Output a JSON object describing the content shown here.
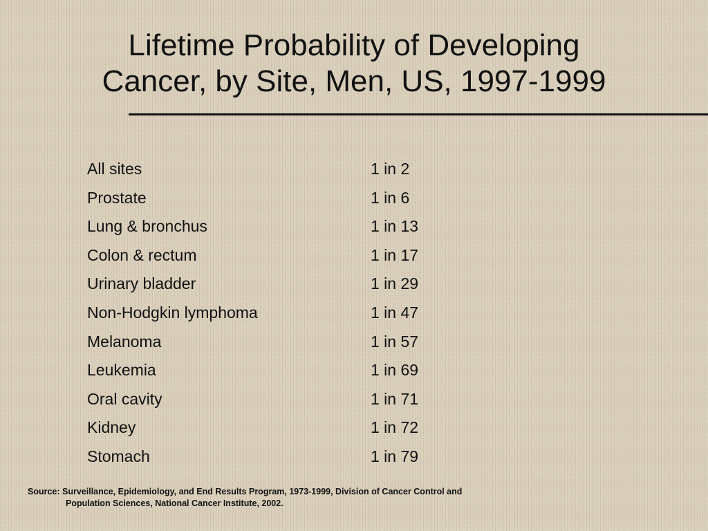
{
  "slide": {
    "title_line1": "Lifetime Probability of Developing",
    "title_line2": "Cancer, by Site, Men, US, 1997-1999",
    "rows": [
      {
        "site": "All sites",
        "probability": "1 in 2"
      },
      {
        "site": "Prostate",
        "probability": "1 in 6"
      },
      {
        "site": "Lung & bronchus",
        "probability": "1 in 13"
      },
      {
        "site": "Colon & rectum",
        "probability": "1 in 17"
      },
      {
        "site": "Urinary bladder",
        "probability": "1 in 29"
      },
      {
        "site": "Non-Hodgkin lymphoma",
        "probability": "1 in 47"
      },
      {
        "site": "Melanoma",
        "probability": "1 in 57"
      },
      {
        "site": "Leukemia",
        "probability": "1 in 69"
      },
      {
        "site": "Oral cavity",
        "probability": "1 in 71"
      },
      {
        "site": "Kidney",
        "probability": "1 in 72"
      },
      {
        "site": "Stomach",
        "probability": "1 in 79"
      }
    ],
    "source_line1": "Source: Surveillance, Epidemiology, and End Results Program, 1973-1999, Division of Cancer Control and",
    "source_line2": "Population Sciences, National Cancer Institute, 2002."
  },
  "colors": {
    "background": "#d8cdb8",
    "text": "#111111"
  }
}
